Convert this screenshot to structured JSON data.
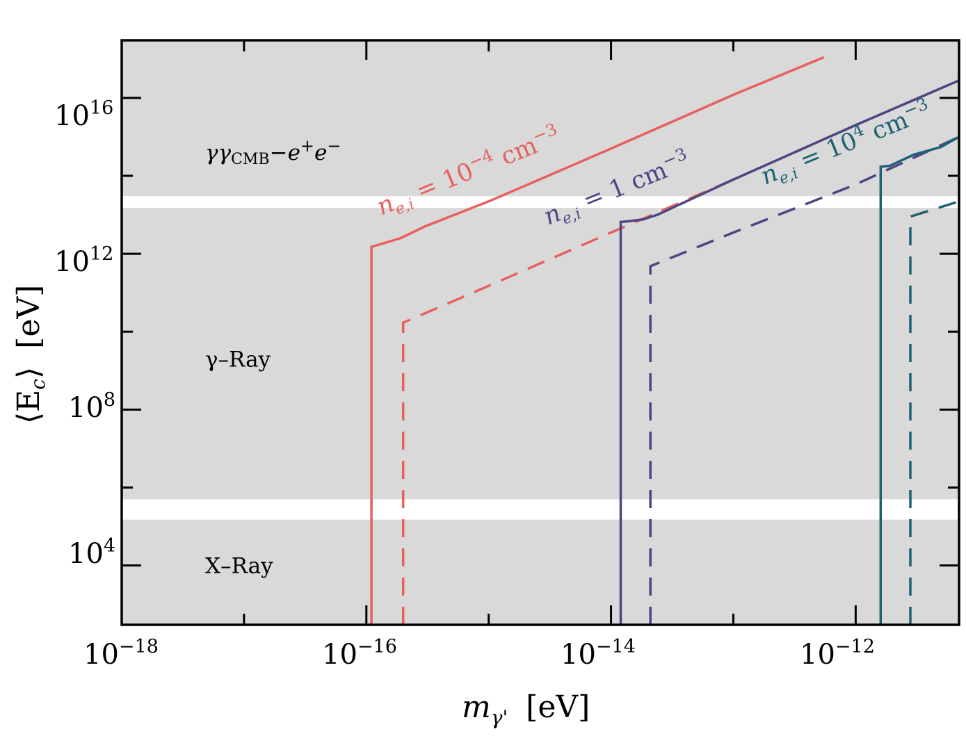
{
  "chart_data": {
    "type": "line",
    "title": "",
    "xlabel": {
      "var": "m",
      "sub": "γ'",
      "unit": "[eV]"
    },
    "ylabel": {
      "text": "⟨E",
      "sub": "c",
      "close": "⟩",
      "unit": "[eV]"
    },
    "xscale": "log",
    "yscale": "log",
    "xlim": [
      1e-18,
      7e-12
    ],
    "ylim": [
      300.0,
      3e+17
    ],
    "x_ticks": [
      {
        "base": "10",
        "exp": "−18",
        "value": 1e-18
      },
      {
        "base": "10",
        "exp": "−16",
        "value": 1e-16
      },
      {
        "base": "10",
        "exp": "−14",
        "value": 1e-14
      },
      {
        "base": "10",
        "exp": "−12",
        "value": 1e-12
      }
    ],
    "y_ticks": [
      {
        "base": "10",
        "exp": "4",
        "value": 10000.0
      },
      {
        "base": "10",
        "exp": "8",
        "value": 100000000.0
      },
      {
        "base": "10",
        "exp": "12",
        "value": 1000000000000.0
      },
      {
        "base": "10",
        "exp": "16",
        "value": 1e+16
      }
    ],
    "bands": [
      {
        "name": "xray",
        "ymin": 300.0,
        "ymax": 150000.0,
        "label": "X–Ray",
        "label_y": 10000.0
      },
      {
        "name": "gamma-ray",
        "ymin": 500000.0,
        "ymax": 15000000000000.0,
        "label": "γ–Ray",
        "label_y": 2000000000.0
      },
      {
        "name": "gg-cmb",
        "ymin": 30000000000000.0,
        "ymax": 3e+17,
        "label": {
          "main": "γγ",
          "sub": "CMB",
          "rest": "−e",
          "sup1": "+",
          "e2": "e",
          "sup2": "−"
        },
        "label_y": 400000000000000.0
      }
    ],
    "band_color": "#d9d9d9",
    "series": [
      {
        "name": "n_e,i = 1e-4 cm^-3 (solid)",
        "color": "#e8605e",
        "dash": false,
        "points": [
          [
            1.1e-16,
            300.0
          ],
          [
            1.1e-16,
            1500000000000.0
          ],
          [
            1.9e-16,
            2500000000000.0
          ],
          [
            3e-16,
            5000000000000.0
          ],
          [
            1e-15,
            22000000000000.0
          ],
          [
            1e-14,
            500000000000000.0
          ],
          [
            1e-13,
            1.2e+16
          ],
          [
            5.5e-13,
            1.1e+17
          ]
        ]
      },
      {
        "name": "n_e,i = 1e-4 cm^-3 (dashed)",
        "color": "#e8605e",
        "dash": true,
        "points": [
          [
            2e-16,
            300.0
          ],
          [
            2e-16,
            17000000000.0
          ],
          [
            1e-15,
            150000000000.0
          ],
          [
            1e-14,
            3500000000000.0
          ],
          [
            1e-13,
            80000000000000.0
          ],
          [
            1e-12,
            2000000000000000.0
          ],
          [
            7e-12,
            2.8e+16
          ]
        ]
      },
      {
        "name": "n_e,i = 1 cm^-3 (solid)",
        "color": "#4d4584",
        "dash": false,
        "points": [
          [
            1.2e-14,
            300.0
          ],
          [
            1.2e-14,
            6500000000000.0
          ],
          [
            1.8e-14,
            7500000000000.0
          ],
          [
            2.4e-14,
            10000000000000.0
          ],
          [
            1e-13,
            80000000000000.0
          ],
          [
            1e-12,
            2000000000000000.0
          ],
          [
            7e-12,
            2.8e+16
          ]
        ]
      },
      {
        "name": "n_e,i = 1 cm^-3 (dashed)",
        "color": "#4d4584",
        "dash": true,
        "points": [
          [
            2.1e-14,
            300.0
          ],
          [
            2.1e-14,
            480000000000.0
          ],
          [
            1e-13,
            3500000000000.0
          ],
          [
            1e-12,
            60000000000000.0
          ],
          [
            7e-12,
            1000000000000000.0
          ]
        ]
      },
      {
        "name": "n_e,i = 1e4 cm^-3 (solid)",
        "color": "#1e6173",
        "dash": false,
        "points": [
          [
            1.6e-12,
            300.0
          ],
          [
            1.6e-12,
            170000000000000.0
          ],
          [
            1.9e-12,
            180000000000000.0
          ],
          [
            3e-12,
            350000000000000.0
          ],
          [
            5e-12,
            550000000000000.0
          ],
          [
            7e-12,
            1000000000000000.0
          ]
        ]
      },
      {
        "name": "n_e,i = 1e4 cm^-3 (dashed)",
        "color": "#1e6173",
        "dash": true,
        "points": [
          [
            2.8e-12,
            300.0
          ],
          [
            2.8e-12,
            9000000000000.0
          ],
          [
            7e-12,
            22000000000000.0
          ]
        ]
      }
    ],
    "annotations": [
      {
        "base": "n",
        "sub": "e,i",
        "mid": " = 10",
        "sup": "−4",
        "unit": " cm",
        "sup2": "−3",
        "color": "#e8605e"
      },
      {
        "base": "n",
        "sub": "e,i",
        "mid": " = 1 cm",
        "sup": "−3",
        "color": "#4d4584"
      },
      {
        "base": "n",
        "sub": "e,i",
        "mid": " = 10",
        "sup": "4",
        "unit": " cm",
        "sup2": "−3",
        "color": "#1e6173"
      }
    ]
  }
}
